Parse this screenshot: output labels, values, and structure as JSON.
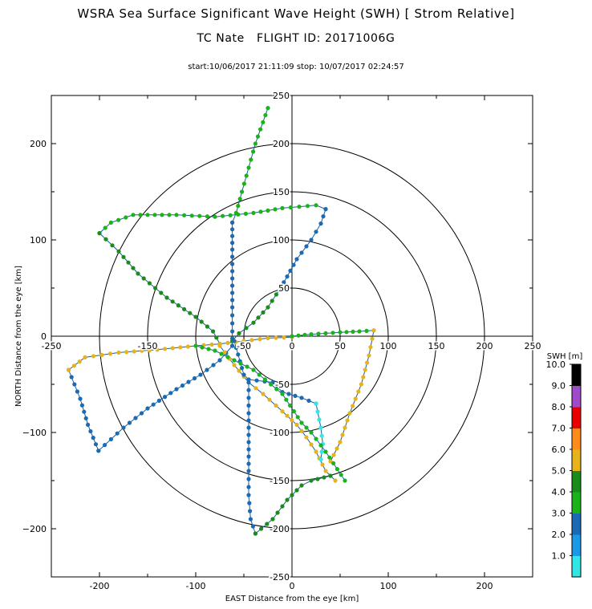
{
  "header": {
    "title": "WSRA Sea Surface Significant Wave Height (SWH) [ Strom Relative]",
    "subtitle": "TC Nate   FLIGHT ID: 20171006G",
    "timerange": "start:10/06/2017 21:11:09 stop: 10/07/2017 02:24:57"
  },
  "chart_data": {
    "type": "scatter",
    "xlabel": "EAST Distance from the eye [km]",
    "ylabel": "NORTH Distance from the eye [km]",
    "xlim": [
      -250,
      250
    ],
    "ylim": [
      -250,
      250
    ],
    "x_ticks": [
      "-200",
      "-100",
      "0",
      "100",
      "200"
    ],
    "y_ticks": [
      "200",
      "100",
      "0",
      "−100",
      "−200"
    ],
    "center_x_ticks": [
      "-250",
      "-150",
      "-50",
      "0",
      "50",
      "100",
      "150",
      "200",
      "250"
    ],
    "center_y_ticks": [
      "250",
      "200",
      "150",
      "100",
      "50",
      "0",
      "-50",
      "-100",
      "-150",
      "-200",
      "-250"
    ],
    "range_rings_km": [
      50,
      100,
      150,
      200
    ],
    "colorbar": {
      "title": "SWH [m]",
      "tick_labels": [
        "1.0",
        "2.0",
        "3.0",
        "4.0",
        "5.0",
        "6.0",
        "7.0",
        "8.0",
        "9.0",
        "10.0"
      ],
      "colors": [
        "#33e6e6",
        "#1a9ae6",
        "#1a6ab4",
        "#1ab41a",
        "#1a8c1a",
        "#e6b41a",
        "#ff8c1a",
        "#e60000",
        "#a04cc8",
        "#000000"
      ]
    },
    "flight_legs": [
      {
        "pts": [
          [
            -25,
            237
          ],
          [
            -38,
            200
          ],
          [
            -52,
            150
          ],
          [
            -58,
            128
          ],
          [
            -62,
            118
          ]
        ],
        "swh": 3.0
      },
      {
        "pts": [
          [
            -62,
            118
          ],
          [
            -62,
            90
          ],
          [
            -62,
            60
          ],
          [
            -62,
            30
          ],
          [
            -62,
            5
          ],
          [
            -62,
            -10
          ]
        ],
        "swh": 2.5
      },
      {
        "pts": [
          [
            -200,
            107
          ],
          [
            -188,
            118
          ],
          [
            -165,
            126
          ],
          [
            -120,
            126
          ],
          [
            -80,
            124
          ],
          [
            -40,
            128
          ],
          [
            -10,
            133
          ],
          [
            25,
            136
          ],
          [
            35,
            132
          ]
        ],
        "swh": 3.4
      },
      {
        "pts": [
          [
            35,
            132
          ],
          [
            30,
            117
          ],
          [
            20,
            100
          ],
          [
            5,
            80
          ],
          [
            -5,
            62
          ],
          [
            -12,
            50
          ]
        ],
        "swh": 2.7
      },
      {
        "pts": [
          [
            -12,
            50
          ],
          [
            -25,
            30
          ],
          [
            -40,
            14
          ],
          [
            -55,
            3
          ],
          [
            -62,
            -5
          ]
        ],
        "swh": 4.5
      },
      {
        "pts": [
          [
            -200,
            107
          ],
          [
            -180,
            88
          ],
          [
            -160,
            65
          ],
          [
            -130,
            40
          ],
          [
            -100,
            20
          ],
          [
            -82,
            5
          ],
          [
            -75,
            -8
          ]
        ],
        "swh": 4.0
      },
      {
        "pts": [
          [
            -232,
            -35
          ],
          [
            -220,
            -65
          ],
          [
            -212,
            -92
          ],
          [
            -201,
            -119
          ]
        ],
        "swh": 2.0
      },
      {
        "pts": [
          [
            -201,
            -119
          ],
          [
            -175,
            -95
          ],
          [
            -150,
            -75
          ],
          [
            -120,
            -55
          ],
          [
            -95,
            -40
          ],
          [
            -75,
            -25
          ],
          [
            -62,
            -10
          ]
        ],
        "swh": 2.7
      },
      {
        "pts": [
          [
            -232,
            -35
          ],
          [
            -215,
            -22
          ],
          [
            -180,
            -17
          ],
          [
            -140,
            -14
          ],
          [
            -100,
            -10
          ],
          [
            -75,
            -8
          ],
          [
            -50,
            -5
          ],
          [
            -25,
            -2
          ],
          [
            0,
            -1
          ]
        ],
        "swh": 5.8
      },
      {
        "pts": [
          [
            0,
            0
          ],
          [
            20,
            2
          ],
          [
            50,
            4
          ],
          [
            70,
            5
          ],
          [
            85,
            6
          ]
        ],
        "swh": 3.8
      },
      {
        "pts": [
          [
            85,
            6
          ],
          [
            80,
            -20
          ],
          [
            72,
            -50
          ],
          [
            60,
            -80
          ],
          [
            50,
            -110
          ],
          [
            40,
            -130
          ]
        ],
        "swh": 5.8
      },
      {
        "pts": [
          [
            -75,
            -10
          ],
          [
            -60,
            -30
          ],
          [
            -45,
            -48
          ],
          [
            -30,
            -60
          ],
          [
            -10,
            -78
          ],
          [
            5,
            -92
          ],
          [
            15,
            -105
          ],
          [
            25,
            -120
          ],
          [
            35,
            -140
          ],
          [
            45,
            -150
          ]
        ],
        "swh": 5.3
      },
      {
        "pts": [
          [
            -60,
            -5
          ],
          [
            -50,
            -40
          ],
          [
            -45,
            -45
          ],
          [
            -20,
            -48
          ],
          [
            -10,
            -58
          ],
          [
            10,
            -64
          ],
          [
            25,
            -70
          ]
        ],
        "swh": 2.3
      },
      {
        "pts": [
          [
            -45,
            -48
          ],
          [
            -45,
            -80
          ],
          [
            -45,
            -110
          ],
          [
            -45,
            -140
          ],
          [
            -45,
            -165
          ],
          [
            -43,
            -190
          ],
          [
            -38,
            -205
          ]
        ],
        "swh": 2.4
      },
      {
        "pts": [
          [
            -38,
            -205
          ],
          [
            -20,
            -190
          ],
          [
            -5,
            -170
          ],
          [
            10,
            -155
          ],
          [
            20,
            -150
          ],
          [
            40,
            -145
          ]
        ],
        "swh": 4.0
      },
      {
        "pts": [
          [
            25,
            -70
          ],
          [
            30,
            -95
          ],
          [
            32,
            -112
          ],
          [
            30,
            -128
          ]
        ],
        "swh": 0.9
      },
      {
        "pts": [
          [
            -100,
            -10
          ],
          [
            -80,
            -15
          ],
          [
            -60,
            -25
          ],
          [
            -40,
            -35
          ],
          [
            -10,
            -60
          ],
          [
            10,
            -90
          ],
          [
            20,
            -100
          ],
          [
            35,
            -120
          ],
          [
            55,
            -150
          ]
        ],
        "swh": 3.7
      }
    ]
  }
}
